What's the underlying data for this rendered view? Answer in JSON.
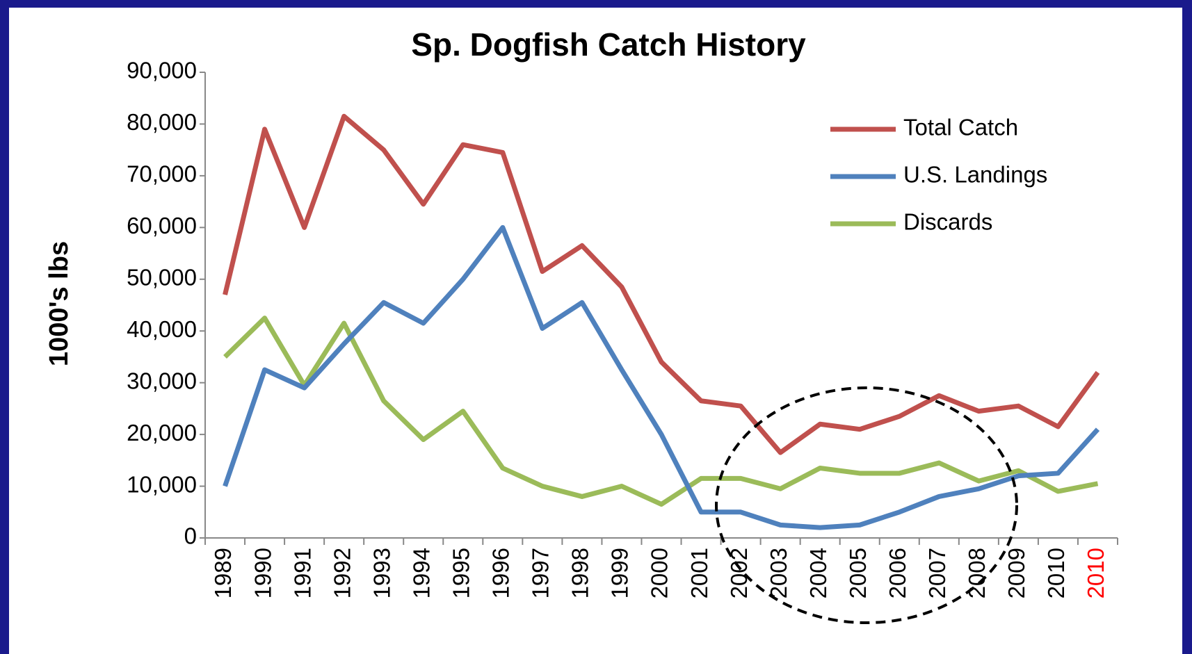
{
  "chart_data": {
    "type": "line",
    "title": "Sp. Dogfish Catch History",
    "y_label": "1000's lbs",
    "categories": [
      "1989",
      "1990",
      "1991",
      "1992",
      "1993",
      "1994",
      "1995",
      "1996",
      "1997",
      "1998",
      "1999",
      "2000",
      "2001",
      "2002",
      "2003",
      "2004",
      "2005",
      "2006",
      "2007",
      "2008",
      "2009",
      "2010",
      "2010"
    ],
    "highlight_category_color": "#ff0000",
    "series": [
      {
        "name": "Total Catch",
        "color": "#c0504d",
        "values": [
          47000,
          79000,
          60000,
          81500,
          75000,
          64500,
          76000,
          74500,
          51500,
          56500,
          48500,
          34000,
          26500,
          25500,
          16500,
          22000,
          21000,
          23500,
          27500,
          24500,
          25500,
          21500,
          32000
        ]
      },
      {
        "name": "U.S. Landings",
        "color": "#4f81bd",
        "values": [
          10000,
          32500,
          29000,
          37500,
          45500,
          41500,
          50000,
          60000,
          40500,
          45500,
          32500,
          20000,
          5000,
          5000,
          2500,
          2000,
          2500,
          5000,
          8000,
          9500,
          12000,
          12500,
          21000
        ]
      },
      {
        "name": "Discards",
        "color": "#9bbb59",
        "values": [
          35000,
          42500,
          29500,
          41500,
          26500,
          19000,
          24500,
          13500,
          10000,
          8000,
          10000,
          6500,
          11500,
          11500,
          9500,
          13500,
          12500,
          12500,
          14500,
          11000,
          13000,
          9000,
          10500
        ]
      }
    ],
    "ylim": [
      0,
      90000
    ],
    "yticks": [
      0,
      {
        "value": 10000,
        "label": "10,000"
      },
      {
        "value": 20000,
        "label": "20,000"
      },
      {
        "value": 30000,
        "label": "30,000"
      },
      {
        "value": 40000,
        "label": "40,000"
      },
      {
        "value": 50000,
        "label": "50,000"
      },
      {
        "value": 60000,
        "label": "60,000"
      },
      {
        "value": 70000,
        "label": "70,000"
      },
      {
        "value": 80000,
        "label": "80,000"
      },
      {
        "value": 90000,
        "label": "90,000"
      }
    ],
    "grid": false,
    "legend": "upper right"
  }
}
